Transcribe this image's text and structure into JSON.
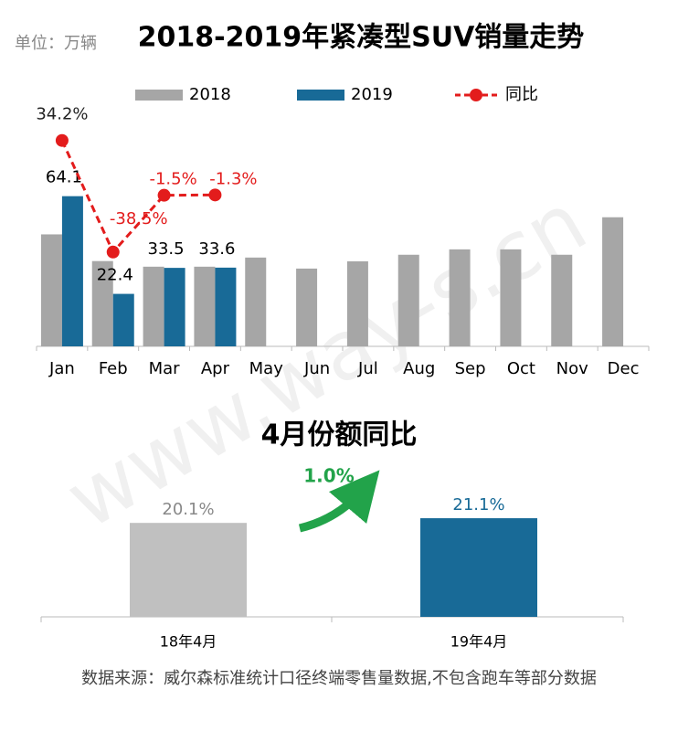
{
  "watermark": "www.way-s.cn",
  "source": "数据来源：威尔森标准统计口径终端零售量数据,不包含跑车等部分数据",
  "chart_data": [
    {
      "type": "bar",
      "title": "2018-2019年紧凑型SUV销量走势",
      "unit": "单位：万辆",
      "categories": [
        "Jan",
        "Feb",
        "Mar",
        "Apr",
        "May",
        "Jun",
        "Jul",
        "Aug",
        "Sep",
        "Oct",
        "Nov",
        "Dec"
      ],
      "ylim": [
        0,
        110
      ],
      "y2lim": [
        -100,
        68
      ],
      "series": [
        {
          "name": "2018",
          "color": "#a6a6a6",
          "values": [
            47.8,
            36.4,
            34.0,
            34.0,
            37.9,
            33.2,
            36.3,
            39.1,
            41.4,
            41.4,
            39.1,
            55.1
          ]
        },
        {
          "name": "2019",
          "color": "#186a97",
          "values": [
            64.1,
            22.4,
            33.5,
            33.6,
            null,
            null,
            null,
            null,
            null,
            null,
            null,
            null
          ]
        },
        {
          "name": "同比",
          "type": "line",
          "axis": "y2",
          "color": "#e31c1c",
          "values": [
            34.2,
            -38.5,
            -1.5,
            -1.3,
            null,
            null,
            null,
            null,
            null,
            null,
            null,
            null
          ],
          "value_labels": [
            "34.2%",
            "-38.5%",
            "-1.5%",
            "-1.3%",
            null,
            null,
            null,
            null,
            null,
            null,
            null,
            null
          ]
        }
      ]
    },
    {
      "type": "bar",
      "title": "4月份额同比",
      "categories": [
        "18年4月",
        "19年4月"
      ],
      "values": [
        20.1,
        21.1
      ],
      "value_labels": [
        "20.1%",
        "21.1%"
      ],
      "colors": [
        "#c0c0c0",
        "#186a97"
      ],
      "ylim": [
        0,
        26
      ],
      "annotation": "1.0%"
    }
  ]
}
